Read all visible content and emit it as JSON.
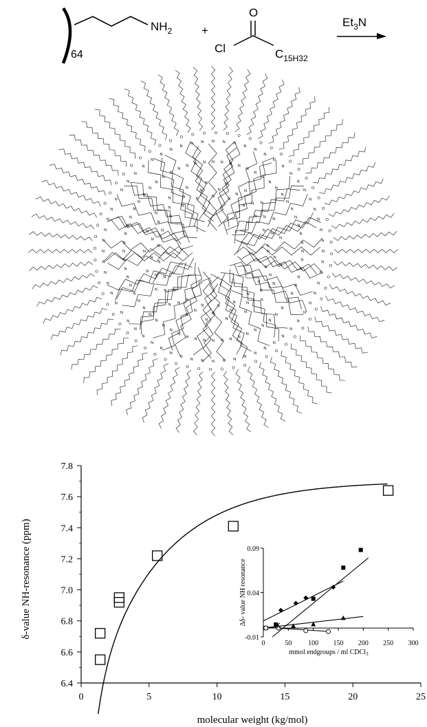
{
  "scheme": {
    "repeat": "64",
    "amine": "NH",
    "amine_sub": "2",
    "plus": "+",
    "acid_chloride_cl": "Cl",
    "carbonyl_o": "O",
    "alkyl": "C",
    "alkyl_sub": "15H32",
    "base_reagent": "Et",
    "base_sub": "3",
    "base_n": "N"
  },
  "dendrimer": {
    "atom_n": "N",
    "atom_o": "O",
    "arm_count": 64
  },
  "chart_data": [
    {
      "type": "scatter",
      "title": "",
      "xlabel": "molecular weight (kg/mol)",
      "ylabel": "δ-value NH-resonance (ppm)",
      "xlim": [
        0,
        25
      ],
      "ylim": [
        6.4,
        7.8
      ],
      "xticks": [
        "0",
        "5",
        "10",
        "15",
        "20",
        "25"
      ],
      "yticks": [
        "6.4",
        "6.6",
        "6.8",
        "7.0",
        "7.2",
        "7.4",
        "7.6",
        "7.8"
      ],
      "series": [
        {
          "marker": "open-square",
          "points": [
            {
              "x": 1.4,
              "y": 6.55
            },
            {
              "x": 1.4,
              "y": 6.72
            },
            {
              "x": 2.8,
              "y": 6.92
            },
            {
              "x": 2.8,
              "y": 6.95
            },
            {
              "x": 5.6,
              "y": 7.22
            },
            {
              "x": 11.2,
              "y": 7.41
            },
            {
              "x": 22.6,
              "y": 7.64
            }
          ],
          "fit": "logarithmic saturation curve"
        }
      ]
    },
    {
      "type": "scatter",
      "title": "",
      "xlabel": "mmol endgroups / ml CDCl",
      "xlabel_sub": "3",
      "ylabel": "Δδ- value NH resonance",
      "xlim": [
        0,
        300
      ],
      "ylim": [
        -0.01,
        0.09
      ],
      "xticks": [
        "0",
        "50",
        "100",
        "150",
        "200",
        "250",
        "300"
      ],
      "yticks": [
        "-0.01",
        "0.04",
        "0.09"
      ],
      "series": [
        {
          "marker": "filled-square",
          "points": [
            {
              "x": 5,
              "y": 0.0
            },
            {
              "x": 25,
              "y": 0.004
            },
            {
              "x": 100,
              "y": 0.033
            },
            {
              "x": 160,
              "y": 0.068
            },
            {
              "x": 195,
              "y": 0.088
            }
          ],
          "line": {
            "x0": 18,
            "y0": -0.01,
            "x1": 210,
            "y1": 0.079
          }
        },
        {
          "marker": "filled-diamond",
          "points": [
            {
              "x": 5,
              "y": 0.0
            },
            {
              "x": 35,
              "y": 0.02
            },
            {
              "x": 65,
              "y": 0.028
            },
            {
              "x": 85,
              "y": 0.034
            },
            {
              "x": 140,
              "y": 0.046
            }
          ],
          "line": {
            "x0": 0,
            "y0": 0.008,
            "x1": 160,
            "y1": 0.053
          }
        },
        {
          "marker": "filled-triangle",
          "points": [
            {
              "x": 5,
              "y": 0.0
            },
            {
              "x": 30,
              "y": 0.001
            },
            {
              "x": 60,
              "y": 0.002
            },
            {
              "x": 100,
              "y": 0.004
            },
            {
              "x": 160,
              "y": 0.011
            }
          ],
          "line": {
            "x0": 0,
            "y0": 0.0,
            "x1": 200,
            "y1": 0.013
          }
        },
        {
          "marker": "open-circle",
          "points": [
            {
              "x": 5,
              "y": 0.0
            },
            {
              "x": 30,
              "y": 0.0
            },
            {
              "x": 85,
              "y": -0.003
            },
            {
              "x": 130,
              "y": -0.004
            }
          ],
          "line": {
            "x0": 0,
            "y0": 0.001,
            "x1": 135,
            "y1": -0.004
          }
        },
        {
          "marker": "star",
          "points": [
            {
              "x": 28,
              "y": 0.003
            }
          ]
        }
      ]
    }
  ]
}
